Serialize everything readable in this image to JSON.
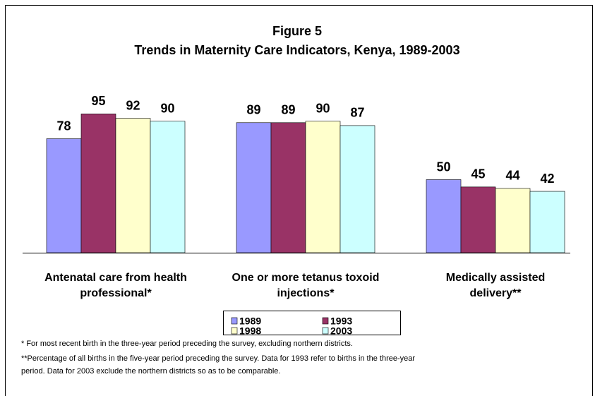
{
  "chart_data": {
    "type": "bar",
    "title": "Figure 5",
    "subtitle": "Trends in Maternity Care Indicators, Kenya, 1989-2003",
    "categories": [
      [
        "Antenatal care from health",
        "professional*"
      ],
      [
        "One or more tetanus toxoid",
        "injections*"
      ],
      [
        "Medically assisted",
        "delivery**"
      ]
    ],
    "series": [
      {
        "name": "1989",
        "color": "#9999ff",
        "values": [
          78,
          89,
          50
        ]
      },
      {
        "name": "1993",
        "color": "#993366",
        "values": [
          95,
          89,
          45
        ]
      },
      {
        "name": "1998",
        "color": "#ffffcc",
        "values": [
          92,
          90,
          44
        ]
      },
      {
        "name": "2003",
        "color": "#ccffff",
        "values": [
          90,
          87,
          42
        ]
      }
    ],
    "ylim": [
      0,
      100
    ],
    "footnotes": [
      "* For most recent birth in the three-year period preceding the survey, excluding northern districts.",
      "**Percentage of all births in the five-year period preceding the survey. Data for 1993 refer to births in the three-year",
      "period. Data for 2003 exclude the northern districts so as to be comparable."
    ]
  }
}
